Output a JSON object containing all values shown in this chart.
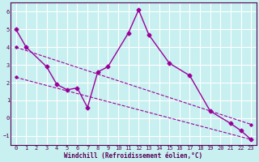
{
  "x_main": [
    0,
    1,
    3,
    4,
    5,
    6,
    7,
    8,
    9,
    11,
    12,
    13,
    15,
    17,
    19,
    21,
    22,
    23
  ],
  "y_main": [
    5.0,
    4.0,
    2.9,
    1.9,
    1.6,
    1.7,
    0.6,
    2.6,
    2.9,
    4.8,
    6.1,
    4.7,
    3.1,
    2.4,
    0.4,
    -0.3,
    -0.7,
    -1.2
  ],
  "trend1_x": [
    0,
    23
  ],
  "trend1_y": [
    4.0,
    -0.35
  ],
  "trend2_x": [
    0,
    23
  ],
  "trend2_y": [
    2.3,
    -1.2
  ],
  "xlabel": "Windchill (Refroidissement éolien,°C)",
  "ylim": [
    -1.5,
    6.5
  ],
  "xlim": [
    -0.5,
    23.5
  ],
  "yticks": [
    -1,
    0,
    1,
    2,
    3,
    4,
    5,
    6
  ],
  "xticks": [
    0,
    1,
    2,
    3,
    4,
    5,
    6,
    7,
    8,
    9,
    10,
    11,
    12,
    13,
    14,
    15,
    16,
    17,
    18,
    19,
    20,
    21,
    22,
    23
  ],
  "bg_color": "#c8f0f0",
  "grid_color": "#ffffff",
  "line_color": "#990099",
  "axis_color": "#550055",
  "xlabel_color": "#550055"
}
